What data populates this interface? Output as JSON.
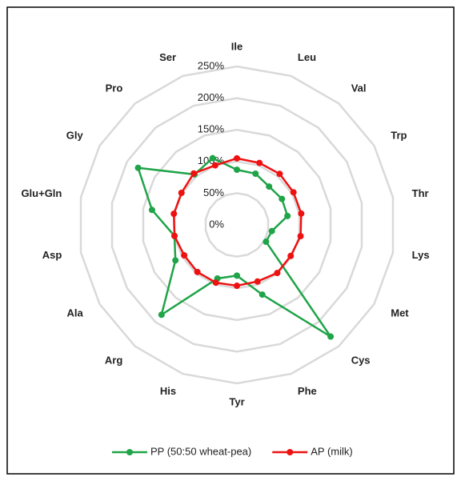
{
  "chart_data": {
    "type": "radar",
    "categories": [
      "Ile",
      "Leu",
      "Val",
      "Trp",
      "Thr",
      "Lys",
      "Met",
      "Cys",
      "Phe",
      "Tyr",
      "His",
      "Arg",
      "Ala",
      "Asp",
      "Glu+Gln",
      "Gly",
      "Pro",
      "Ser"
    ],
    "series": [
      {
        "name": "PP (50:50 wheat-pea)",
        "color": "#1fa448",
        "values": [
          87,
          86,
          79,
          82,
          81,
          56,
          53,
          230,
          117,
          80,
          90,
          185,
          112,
          100,
          136,
          180,
          104,
          112
        ]
      },
      {
        "name": "AP (milk)",
        "color": "#ee1111",
        "values": [
          105,
          104,
          105,
          103,
          103,
          102,
          98,
          99,
          95,
          96,
          97,
          97,
          96,
          100,
          101,
          101,
          106,
          100
        ]
      }
    ],
    "ylim": [
      0,
      250
    ],
    "yticks": [
      {
        "value": 0,
        "label": "0%"
      },
      {
        "value": 50,
        "label": "50%"
      },
      {
        "value": 100,
        "label": "100%"
      },
      {
        "value": 150,
        "label": "150%"
      },
      {
        "value": 200,
        "label": "200%"
      },
      {
        "value": 250,
        "label": "250%"
      }
    ],
    "grid": true,
    "legend": "bottom"
  }
}
